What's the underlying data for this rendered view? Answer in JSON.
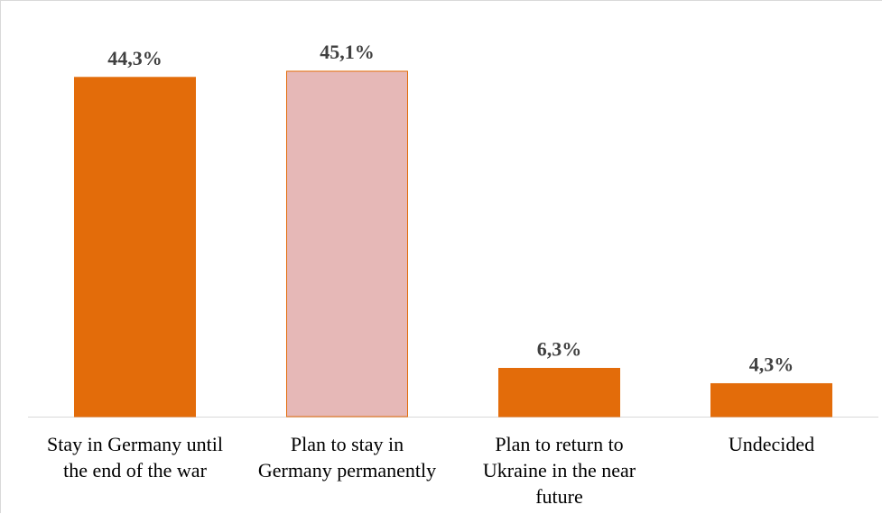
{
  "chart_data": {
    "type": "bar",
    "title": "",
    "xlabel": "",
    "ylabel": "",
    "ylim": [
      0,
      45.1
    ],
    "grid": false,
    "legend": "none",
    "categories": [
      [
        "Stay in Germany until",
        "the end of the war"
      ],
      [
        "Plan to stay in",
        "Germany permanently"
      ],
      [
        "Plan to return to",
        "Ukraine in the near",
        "future"
      ],
      [
        "Undecided"
      ]
    ],
    "values": [
      44.3,
      45.1,
      6.3,
      4.3
    ],
    "value_labels": [
      "44,3%",
      "45,1%",
      "6,3%",
      "4,3%"
    ],
    "bar_colors": [
      "#E36C0A",
      "#E6B8B7",
      "#E36C0A",
      "#E36C0A"
    ],
    "bar_outline": "#E36C0A",
    "axis_color": "#d9d9d9"
  }
}
